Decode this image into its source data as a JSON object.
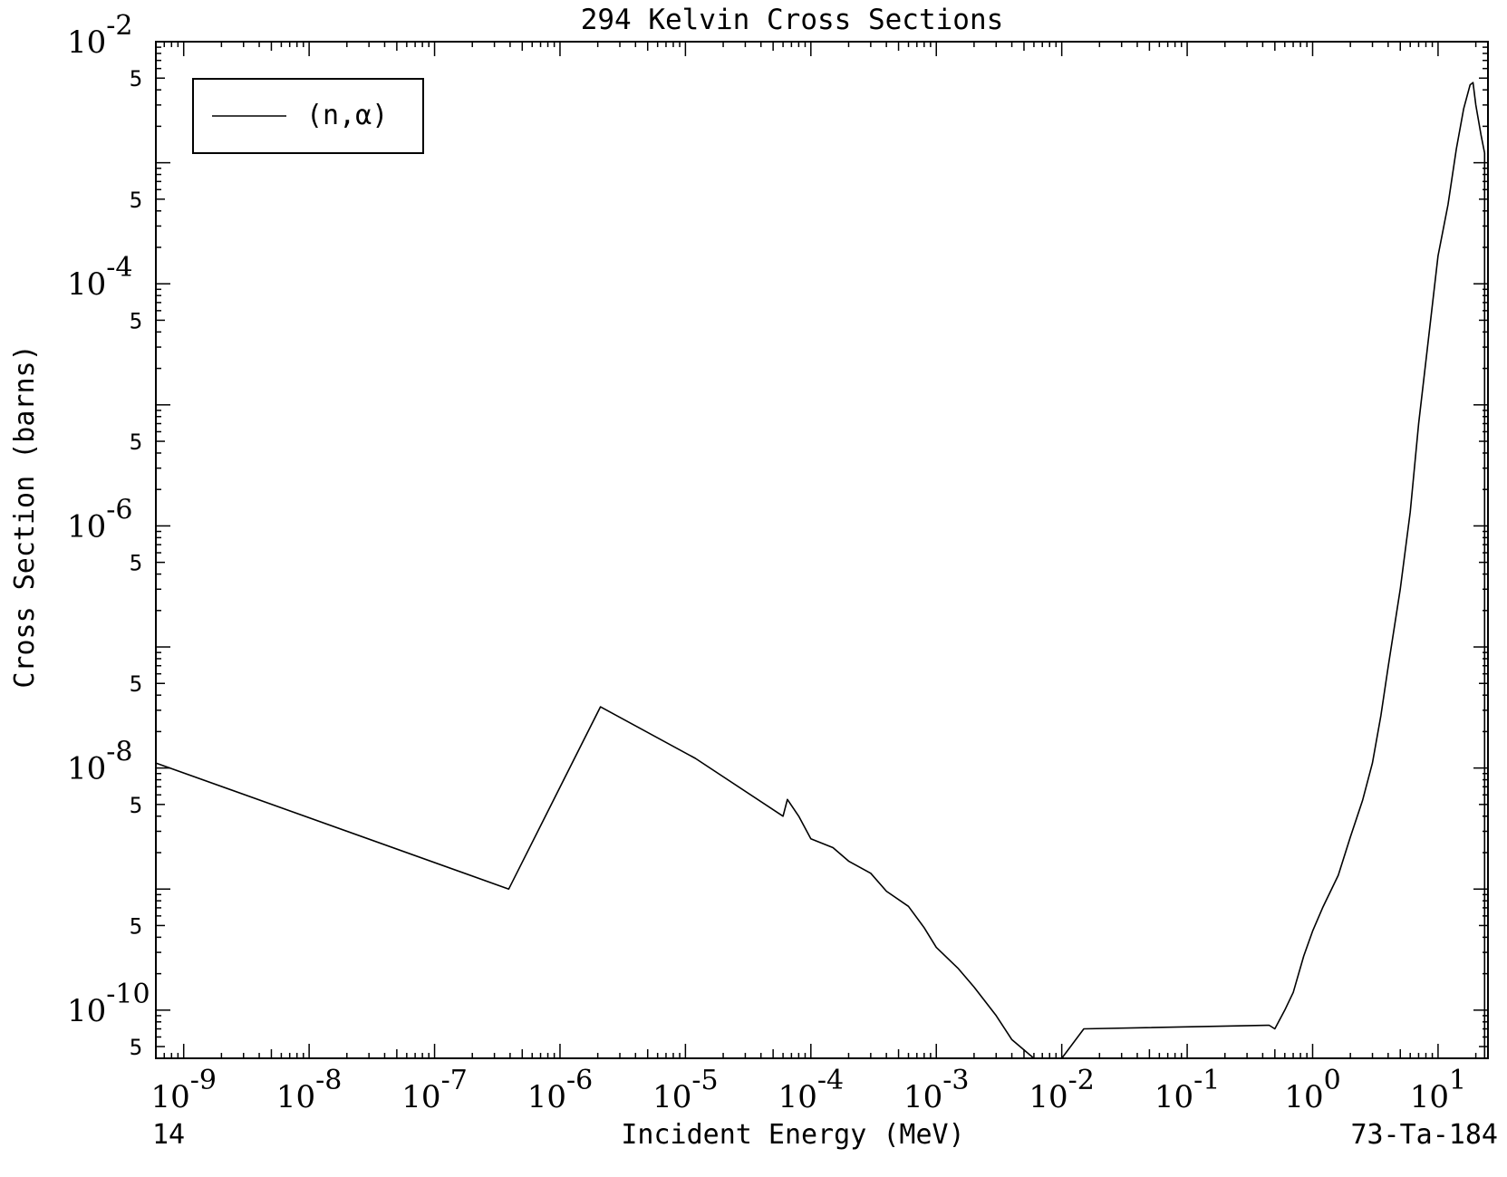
{
  "chart_data": {
    "type": "line",
    "title": "294 Kelvin Cross Sections",
    "xlabel": "Incident Energy (MeV)",
    "ylabel": "Cross Section (barns)",
    "x_scale": "log",
    "y_scale": "log",
    "xlim": [
      6e-10,
      25
    ],
    "ylim": [
      4e-11,
      0.01
    ],
    "x_ticks": [
      {
        "base": "10",
        "exp": "-9"
      },
      {
        "base": "10",
        "exp": "-8"
      },
      {
        "base": "10",
        "exp": "-7"
      },
      {
        "base": "10",
        "exp": "-6"
      },
      {
        "base": "10",
        "exp": "-5"
      },
      {
        "base": "10",
        "exp": "-4"
      },
      {
        "base": "10",
        "exp": "-3"
      },
      {
        "base": "10",
        "exp": "-2"
      },
      {
        "base": "10",
        "exp": "-1"
      },
      {
        "base": "10",
        "exp": "0"
      },
      {
        "base": "10",
        "exp": "1"
      }
    ],
    "y_major_ticks": [
      {
        "base": "10",
        "exp": "-2"
      },
      {
        "base": "10",
        "exp": "-4"
      },
      {
        "base": "10",
        "exp": "-6"
      },
      {
        "base": "10",
        "exp": "-8"
      },
      {
        "base": "10",
        "exp": "-10"
      }
    ],
    "y_minor_label": "5",
    "legend": {
      "placement": "top-left",
      "entries": [
        "(n,α)"
      ]
    },
    "footer_left": "14",
    "footer_right": "73-Ta-184",
    "grid": false,
    "series": [
      {
        "name": "(n,α)",
        "x": [
          6e-10,
          3.9e-07,
          2.1e-06,
          1.2e-05,
          6e-05,
          6.5e-05,
          8e-05,
          0.0001,
          0.00015,
          0.0002,
          0.0003,
          0.0004,
          0.0006,
          0.0008,
          0.001,
          0.0015,
          0.002,
          0.003,
          0.004,
          0.006,
          0.01,
          0.015,
          0.45,
          0.5,
          0.6,
          0.7,
          0.85,
          1.0,
          1.2,
          1.6,
          2.0,
          2.5,
          3.0,
          3.5,
          4.0,
          5.0,
          6.0,
          7.0,
          8.0,
          10.0,
          12.0,
          14.0,
          16.0,
          18.0,
          19.0,
          20.0,
          22.0,
          23.5
        ],
        "y": [
          1.1e-08,
          1e-09,
          3.2e-08,
          1.2e-08,
          4e-09,
          5.5e-09,
          4e-09,
          2.6e-09,
          2.2e-09,
          1.7e-09,
          1.35e-09,
          9.6e-10,
          7.2e-10,
          4.8e-10,
          3.3e-10,
          2.2e-10,
          1.55e-10,
          9e-11,
          5.7e-11,
          4e-11,
          4e-11,
          7e-11,
          7.5e-11,
          7e-11,
          1e-10,
          1.4e-10,
          2.8e-10,
          4.5e-10,
          7e-10,
          1.3e-09,
          2.7e-09,
          5.4e-09,
          1.1e-08,
          2.7e-08,
          6.8e-08,
          3e-07,
          1.3e-06,
          7e-06,
          2.3e-05,
          0.00017,
          0.00045,
          0.0013,
          0.0028,
          0.0044,
          0.0046,
          0.003,
          0.0017,
          0.0012
        ]
      }
    ]
  }
}
